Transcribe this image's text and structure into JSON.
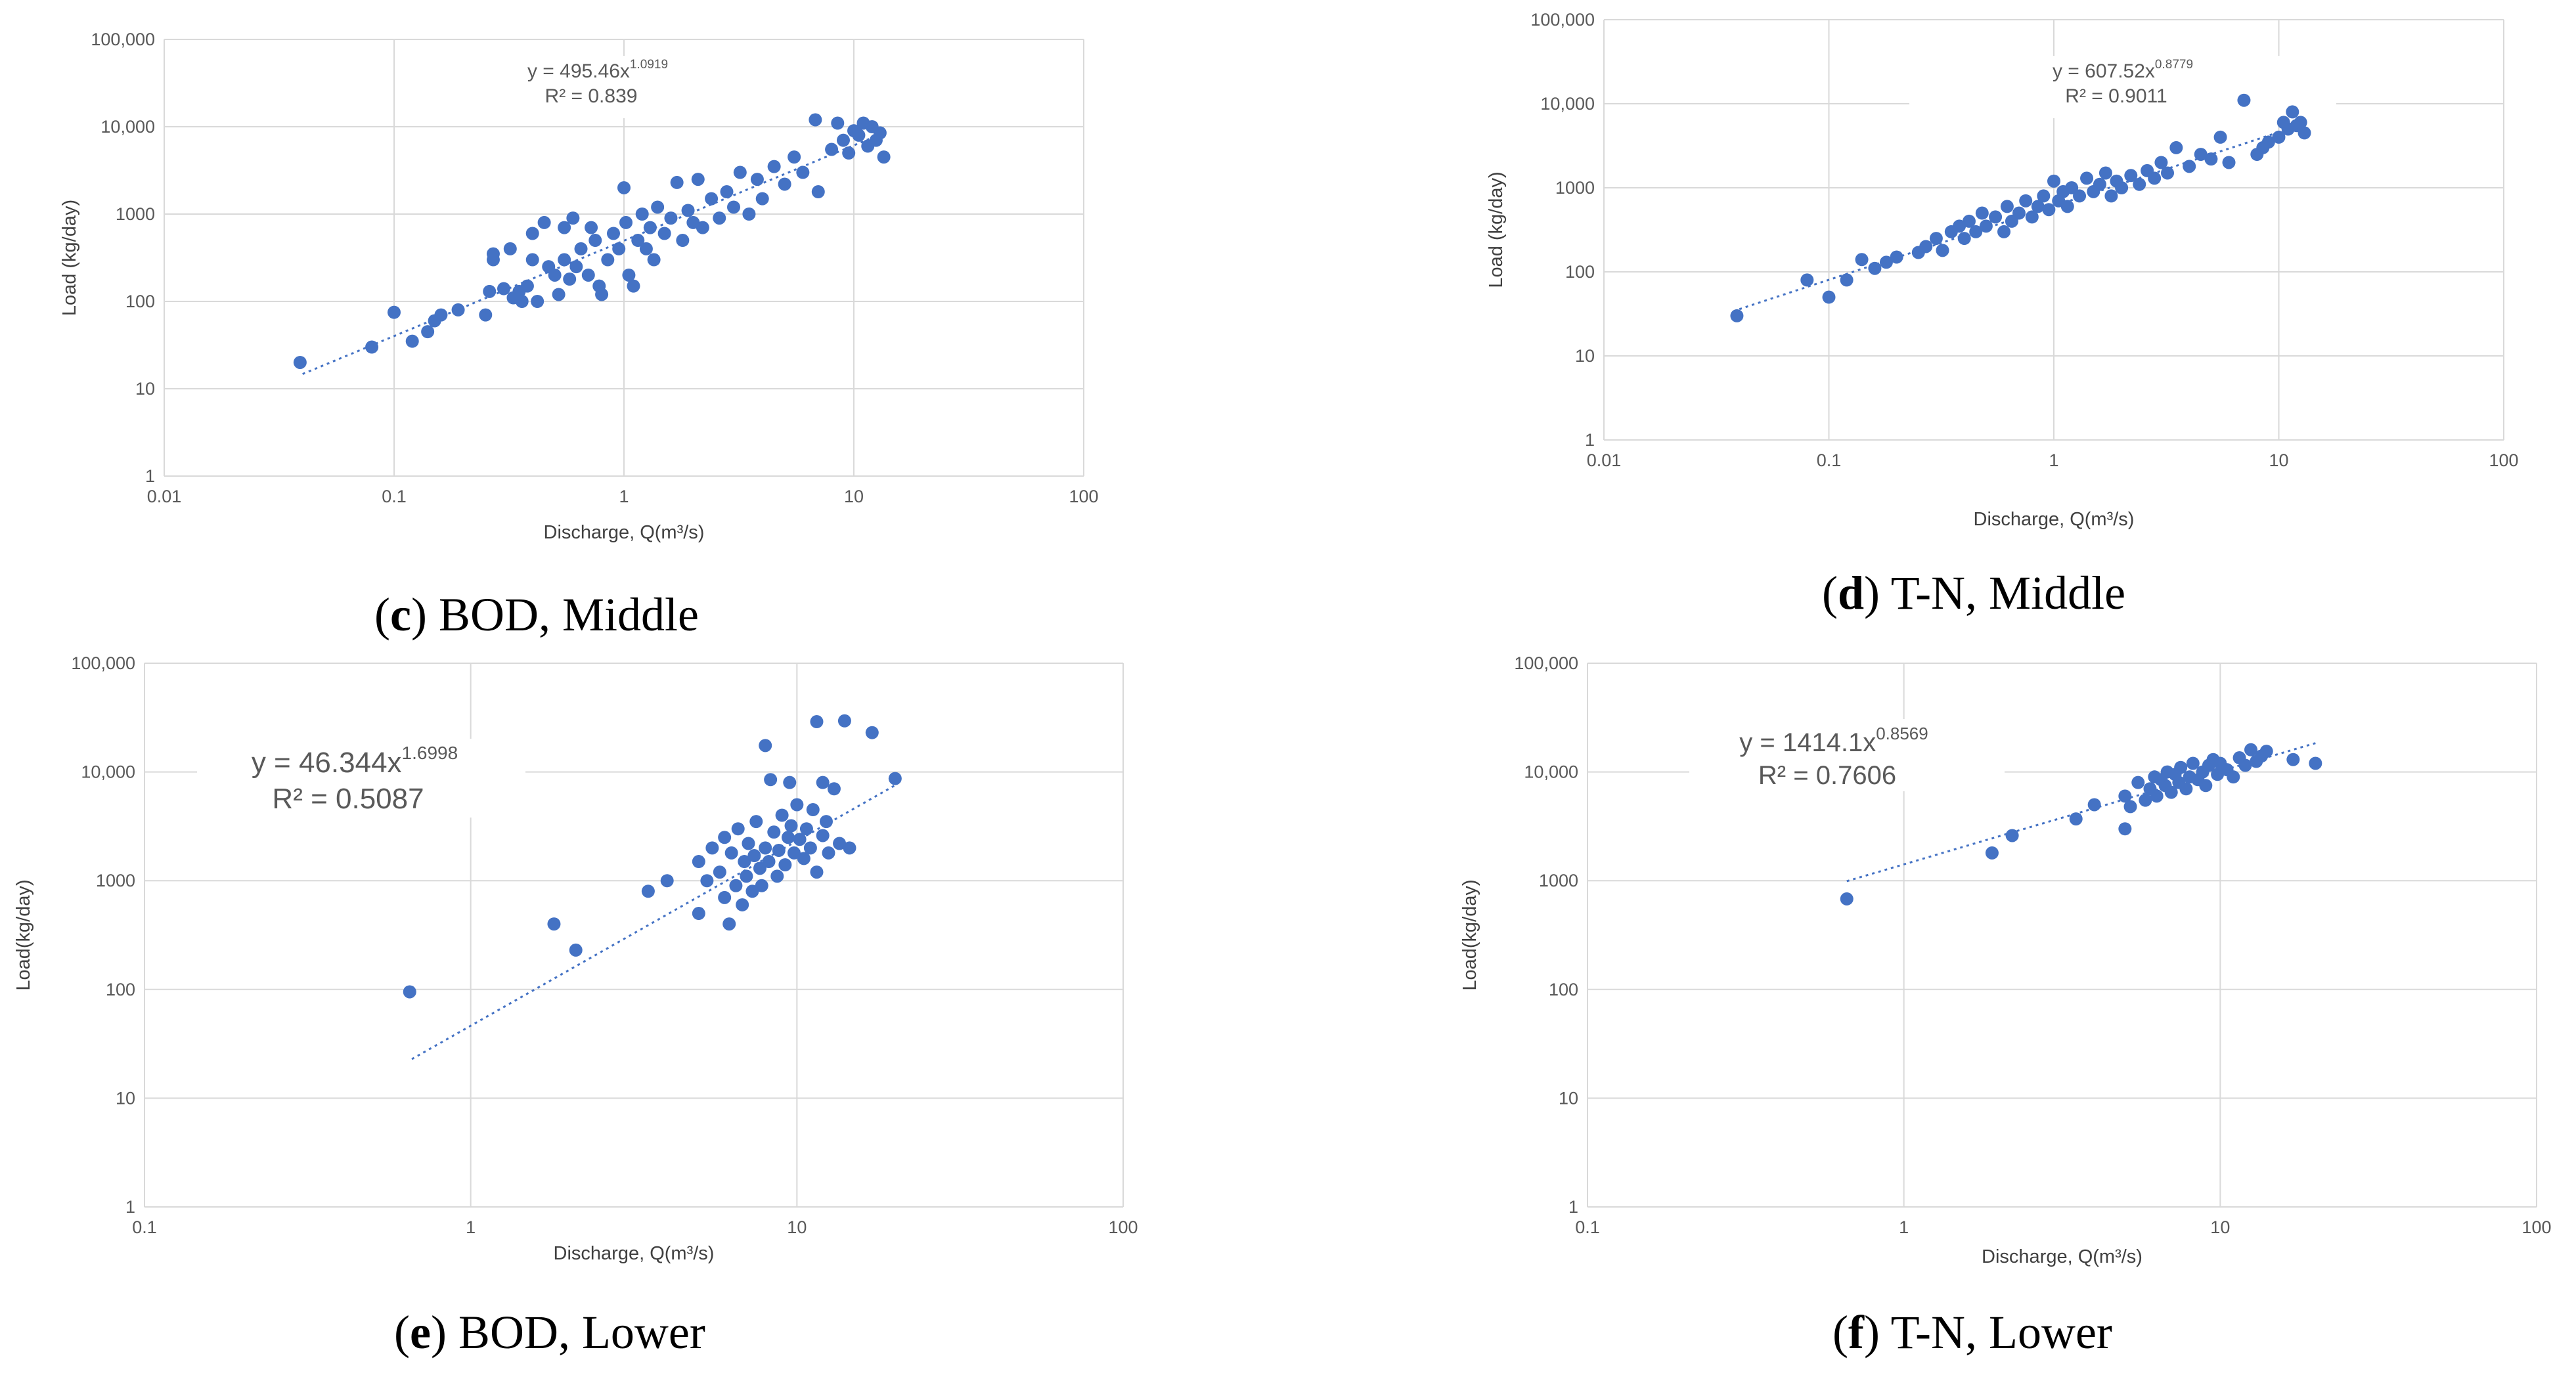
{
  "colors": {
    "marker": "#4472c4",
    "trend": "#4472c4",
    "grid": "#d9d9d9",
    "text": "#595959"
  },
  "captions": [
    {
      "letter": "c",
      "text": ") BOD, Middle"
    },
    {
      "letter": "d",
      "text": ") T-N, Middle"
    },
    {
      "letter": "e",
      "text": ") BOD, Lower"
    },
    {
      "letter": "f",
      "text": ") T-N, Lower"
    }
  ],
  "chart_data": [
    {
      "id": "c",
      "type": "scatter",
      "xscale": "log",
      "yscale": "log",
      "xlim": [
        0.01,
        100
      ],
      "ylim": [
        1,
        100000
      ],
      "xticks": [
        "0.01",
        "0.1",
        "1",
        "10",
        "100"
      ],
      "yticks": [
        "1",
        "10",
        "100",
        "1000",
        "10,000",
        "100,000"
      ],
      "xlabel": "Discharge, Q(m³/s)",
      "ylabel": "Load (kg/day)",
      "equation": {
        "text": "y = 495.46x",
        "exponent": "1.0919",
        "r2": "R² = 0.839"
      },
      "trendline": {
        "a": 495.46,
        "b": 1.0919,
        "xrange": [
          0.04,
          13
        ]
      },
      "points": [
        [
          0.039,
          20
        ],
        [
          0.08,
          30
        ],
        [
          0.1,
          75
        ],
        [
          0.12,
          35
        ],
        [
          0.14,
          45
        ],
        [
          0.15,
          60
        ],
        [
          0.16,
          70
        ],
        [
          0.19,
          80
        ],
        [
          0.25,
          70
        ],
        [
          0.26,
          130
        ],
        [
          0.27,
          350
        ],
        [
          0.27,
          300
        ],
        [
          0.3,
          140
        ],
        [
          0.32,
          400
        ],
        [
          0.33,
          110
        ],
        [
          0.35,
          130
        ],
        [
          0.36,
          100
        ],
        [
          0.38,
          150
        ],
        [
          0.4,
          600
        ],
        [
          0.4,
          300
        ],
        [
          0.42,
          100
        ],
        [
          0.45,
          800
        ],
        [
          0.47,
          250
        ],
        [
          0.5,
          200
        ],
        [
          0.52,
          120
        ],
        [
          0.55,
          700
        ],
        [
          0.55,
          300
        ],
        [
          0.58,
          180
        ],
        [
          0.6,
          900
        ],
        [
          0.62,
          250
        ],
        [
          0.65,
          400
        ],
        [
          0.7,
          200
        ],
        [
          0.72,
          700
        ],
        [
          0.75,
          500
        ],
        [
          0.78,
          150
        ],
        [
          0.8,
          120
        ],
        [
          0.85,
          300
        ],
        [
          0.9,
          600
        ],
        [
          0.95,
          400
        ],
        [
          1.0,
          2000
        ],
        [
          1.02,
          800
        ],
        [
          1.05,
          200
        ],
        [
          1.1,
          150
        ],
        [
          1.15,
          500
        ],
        [
          1.2,
          1000
        ],
        [
          1.25,
          400
        ],
        [
          1.3,
          700
        ],
        [
          1.35,
          300
        ],
        [
          1.4,
          1200
        ],
        [
          1.5,
          600
        ],
        [
          1.6,
          900
        ],
        [
          1.7,
          2300
        ],
        [
          1.8,
          500
        ],
        [
          1.9,
          1100
        ],
        [
          2.0,
          800
        ],
        [
          2.1,
          2500
        ],
        [
          2.2,
          700
        ],
        [
          2.4,
          1500
        ],
        [
          2.6,
          900
        ],
        [
          2.8,
          1800
        ],
        [
          3.0,
          1200
        ],
        [
          3.2,
          3000
        ],
        [
          3.5,
          1000
        ],
        [
          3.8,
          2500
        ],
        [
          4.0,
          1500
        ],
        [
          4.5,
          3500
        ],
        [
          5.0,
          2200
        ],
        [
          5.5,
          4500
        ],
        [
          6.0,
          3000
        ],
        [
          6.8,
          12000
        ],
        [
          7.0,
          1800
        ],
        [
          8.0,
          5500
        ],
        [
          8.5,
          11000
        ],
        [
          9.0,
          7000
        ],
        [
          9.5,
          5000
        ],
        [
          10.0,
          9000
        ],
        [
          10.5,
          8000
        ],
        [
          11.0,
          11000
        ],
        [
          11.5,
          6000
        ],
        [
          12.0,
          10000
        ],
        [
          12.5,
          7000
        ],
        [
          13.0,
          8500
        ],
        [
          13.5,
          4500
        ]
      ]
    },
    {
      "id": "d",
      "type": "scatter",
      "xscale": "log",
      "yscale": "log",
      "xlim": [
        0.01,
        100
      ],
      "ylim": [
        1,
        100000
      ],
      "xticks": [
        "0.01",
        "0.1",
        "1",
        "10",
        "100"
      ],
      "yticks": [
        "1",
        "10",
        "100",
        "1000",
        "10,000",
        "100,000"
      ],
      "xlabel": "Discharge, Q(m³/s)",
      "ylabel": "Load (kg/day)",
      "equation": {
        "text": "y = 607.52x",
        "exponent": "0.8779",
        "r2": "R² = 0.9011"
      },
      "trendline": {
        "a": 607.52,
        "b": 0.8779,
        "xrange": [
          0.04,
          13
        ]
      },
      "points": [
        [
          0.039,
          30
        ],
        [
          0.08,
          80
        ],
        [
          0.1,
          50
        ],
        [
          0.12,
          80
        ],
        [
          0.14,
          140
        ],
        [
          0.16,
          110
        ],
        [
          0.18,
          130
        ],
        [
          0.2,
          150
        ],
        [
          0.25,
          170
        ],
        [
          0.27,
          200
        ],
        [
          0.3,
          250
        ],
        [
          0.32,
          180
        ],
        [
          0.35,
          300
        ],
        [
          0.38,
          350
        ],
        [
          0.4,
          250
        ],
        [
          0.42,
          400
        ],
        [
          0.45,
          300
        ],
        [
          0.48,
          500
        ],
        [
          0.5,
          350
        ],
        [
          0.55,
          450
        ],
        [
          0.6,
          300
        ],
        [
          0.62,
          600
        ],
        [
          0.65,
          400
        ],
        [
          0.7,
          500
        ],
        [
          0.75,
          700
        ],
        [
          0.8,
          450
        ],
        [
          0.85,
          600
        ],
        [
          0.9,
          800
        ],
        [
          0.95,
          550
        ],
        [
          1.0,
          1200
        ],
        [
          1.05,
          700
        ],
        [
          1.1,
          900
        ],
        [
          1.15,
          600
        ],
        [
          1.2,
          1000
        ],
        [
          1.3,
          800
        ],
        [
          1.4,
          1300
        ],
        [
          1.5,
          900
        ],
        [
          1.6,
          1100
        ],
        [
          1.7,
          1500
        ],
        [
          1.8,
          800
        ],
        [
          1.9,
          1200
        ],
        [
          2.0,
          1000
        ],
        [
          2.2,
          1400
        ],
        [
          2.4,
          1100
        ],
        [
          2.6,
          1600
        ],
        [
          2.8,
          1300
        ],
        [
          3.0,
          2000
        ],
        [
          3.2,
          1500
        ],
        [
          3.5,
          3000
        ],
        [
          4.0,
          1800
        ],
        [
          4.5,
          2500
        ],
        [
          5.0,
          2200
        ],
        [
          5.5,
          4000
        ],
        [
          6.0,
          2000
        ],
        [
          7.0,
          11000
        ],
        [
          8.0,
          2500
        ],
        [
          8.5,
          3000
        ],
        [
          9.0,
          3500
        ],
        [
          10.0,
          4000
        ],
        [
          10.5,
          6000
        ],
        [
          11.0,
          5000
        ],
        [
          11.5,
          8000
        ],
        [
          12.0,
          5500
        ],
        [
          12.5,
          6000
        ],
        [
          13.0,
          4500
        ]
      ]
    },
    {
      "id": "e",
      "type": "scatter",
      "xscale": "log",
      "yscale": "log",
      "xlim": [
        0.1,
        100
      ],
      "ylim": [
        1,
        100000
      ],
      "xticks": [
        "0.1",
        "1",
        "10",
        "100"
      ],
      "yticks": [
        "1",
        "10",
        "100",
        "1000",
        "10,000",
        "100,000"
      ],
      "xlabel": "Discharge, Q(m³/s)",
      "ylabel": "Load(kg/day)",
      "equation": {
        "text": "y = 46.344x",
        "exponent": "1.6998",
        "r2": "R² = 0.5087"
      },
      "trendline": {
        "a": 46.344,
        "b": 1.6998,
        "xrange": [
          0.66,
          20
        ]
      },
      "points": [
        [
          0.65,
          95
        ],
        [
          1.8,
          400
        ],
        [
          2.1,
          230
        ],
        [
          3.5,
          800
        ],
        [
          4.0,
          1000
        ],
        [
          5.0,
          500
        ],
        [
          5.0,
          1500
        ],
        [
          5.3,
          1000
        ],
        [
          5.5,
          2000
        ],
        [
          5.8,
          1200
        ],
        [
          6.0,
          700
        ],
        [
          6.0,
          2500
        ],
        [
          6.2,
          400
        ],
        [
          6.3,
          1800
        ],
        [
          6.5,
          900
        ],
        [
          6.6,
          3000
        ],
        [
          6.8,
          600
        ],
        [
          6.9,
          1500
        ],
        [
          7.0,
          1100
        ],
        [
          7.1,
          2200
        ],
        [
          7.3,
          800
        ],
        [
          7.4,
          1700
        ],
        [
          7.5,
          3500
        ],
        [
          7.7,
          1300
        ],
        [
          7.8,
          900
        ],
        [
          8.0,
          2000
        ],
        [
          8.0,
          17500
        ],
        [
          8.2,
          1500
        ],
        [
          8.3,
          8500
        ],
        [
          8.5,
          2800
        ],
        [
          8.7,
          1100
        ],
        [
          8.8,
          1900
        ],
        [
          9.0,
          4000
        ],
        [
          9.2,
          1400
        ],
        [
          9.4,
          2500
        ],
        [
          9.5,
          8000
        ],
        [
          9.6,
          3200
        ],
        [
          9.8,
          1800
        ],
        [
          10.0,
          5000
        ],
        [
          10.2,
          2400
        ],
        [
          10.5,
          1600
        ],
        [
          10.7,
          3000
        ],
        [
          11.0,
          2000
        ],
        [
          11.2,
          4500
        ],
        [
          11.5,
          1200
        ],
        [
          11.5,
          29000
        ],
        [
          12.0,
          2600
        ],
        [
          12.0,
          8000
        ],
        [
          12.3,
          3500
        ],
        [
          12.5,
          1800
        ],
        [
          13.0,
          7000
        ],
        [
          13.5,
          2200
        ],
        [
          14.0,
          29500
        ],
        [
          14.5,
          2000
        ],
        [
          17.0,
          23000
        ],
        [
          20.0,
          8700
        ]
      ]
    },
    {
      "id": "f",
      "type": "scatter",
      "xscale": "log",
      "yscale": "log",
      "xlim": [
        0.1,
        100
      ],
      "ylim": [
        1,
        100000
      ],
      "xticks": [
        "0.1",
        "1",
        "10",
        "100"
      ],
      "yticks": [
        "1",
        "10",
        "100",
        "1000",
        "10,000",
        "100,000"
      ],
      "xlabel": "Discharge, Q(m³/s)",
      "ylabel": "Load(kg/day)",
      "equation": {
        "text": "y = 1414.1x",
        "exponent": "0.8569",
        "r2": "R² = 0.7606"
      },
      "trendline": {
        "a": 1414.1,
        "b": 0.8569,
        "xrange": [
          0.66,
          20
        ]
      },
      "points": [
        [
          0.66,
          680
        ],
        [
          1.9,
          1800
        ],
        [
          2.2,
          2600
        ],
        [
          3.5,
          3700
        ],
        [
          4.0,
          5000
        ],
        [
          5.0,
          3000
        ],
        [
          5.0,
          6000
        ],
        [
          5.2,
          4800
        ],
        [
          5.5,
          8000
        ],
        [
          5.8,
          5500
        ],
        [
          6.0,
          7000
        ],
        [
          6.2,
          9000
        ],
        [
          6.3,
          6000
        ],
        [
          6.5,
          8500
        ],
        [
          6.7,
          7500
        ],
        [
          6.8,
          10000
        ],
        [
          7.0,
          6500
        ],
        [
          7.2,
          9500
        ],
        [
          7.4,
          8000
        ],
        [
          7.5,
          11000
        ],
        [
          7.8,
          7000
        ],
        [
          8.0,
          9000
        ],
        [
          8.2,
          12000
        ],
        [
          8.5,
          8500
        ],
        [
          8.8,
          10000
        ],
        [
          9.0,
          7500
        ],
        [
          9.2,
          11500
        ],
        [
          9.5,
          13000
        ],
        [
          9.8,
          9500
        ],
        [
          10.0,
          12000
        ],
        [
          10.5,
          10500
        ],
        [
          11.0,
          9000
        ],
        [
          11.5,
          13500
        ],
        [
          12.0,
          11500
        ],
        [
          12.5,
          16000
        ],
        [
          13.0,
          12500
        ],
        [
          13.5,
          14000
        ],
        [
          14.0,
          15500
        ],
        [
          17.0,
          13000
        ],
        [
          20.0,
          12000
        ]
      ]
    }
  ]
}
